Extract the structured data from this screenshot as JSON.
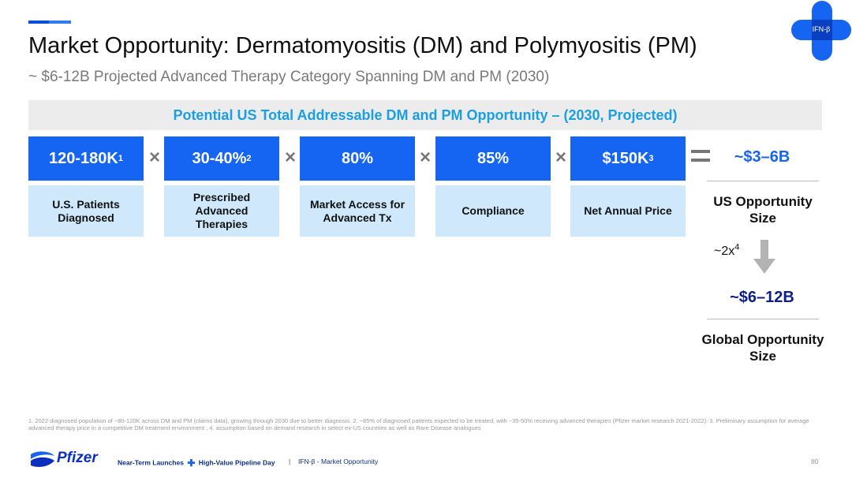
{
  "header": {
    "title": "Market Opportunity: Dermatomyositis (DM) and Polymyositis (PM)",
    "subtitle": "~ $6-12B Projected Advanced Therapy Category Spanning DM and PM (2030)",
    "logo_label": "IFN-β"
  },
  "banner": {
    "text": "Potential US Total Addressable DM and PM Opportunity – (2030, Projected)"
  },
  "factors": [
    {
      "value": "120-180K",
      "sup": "1",
      "label": "U.S. Patients Diagnosed"
    },
    {
      "value": "30-40%",
      "sup": "2",
      "label": "Prescribed Advanced Therapies"
    },
    {
      "value": "80%",
      "sup": "",
      "label": "Market Access for Advanced Tx"
    },
    {
      "value": "85%",
      "sup": "",
      "label": "Compliance"
    },
    {
      "value": "$150K",
      "sup": "3",
      "label": "Net Annual Price"
    }
  ],
  "operators": {
    "multiply": "×"
  },
  "result": {
    "us_value": "~$3–6B",
    "us_label": "US Opportunity Size",
    "multiplier": "~2x",
    "multiplier_sup": "4",
    "global_value": "~$6–12B",
    "global_label": "Global Opportunity Size"
  },
  "footnote": "1. 2022 diagnosed population of ~80-120K across DM and PM (claims data), growing through 2030 due to better diagnosis.  2. ~85% of diagnosed patients expected to be treated, with ~35-50% receiving advanced therapies (Pfizer market research 2021-2022). 3. Preliminary assumption for average advanced therapy price in a competitive DM treatment environment ; 4. assumption based on demand research in select ex-US countries as well as Rare Disease analogues",
  "footer": {
    "brand": "Pfizer",
    "event_part1": "Near-Term Launches",
    "plus": "✚",
    "event_part2": "High-Value Pipeline Day",
    "separator": "|",
    "section": "IFN-β - Market Opportunity",
    "page": "80"
  },
  "colors": {
    "primary_blue": "#1565f2",
    "light_blue": "#cfe8fb",
    "banner_text": "#1a9ee4",
    "global_value": "#0d1f8e"
  }
}
